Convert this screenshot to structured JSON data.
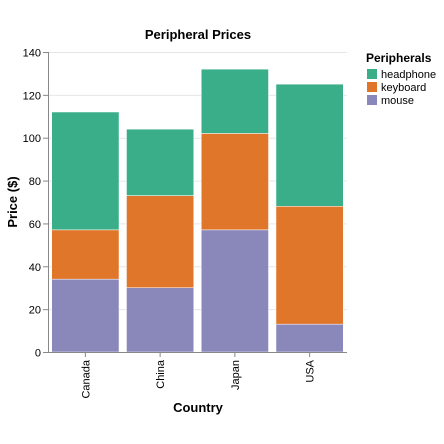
{
  "chart_data": {
    "type": "bar",
    "stacked": true,
    "title": "Peripheral Prices",
    "xlabel": "Country",
    "ylabel": "Price ($)",
    "categories": [
      "Canada",
      "China",
      "Japan",
      "USA"
    ],
    "ylim": [
      0,
      140
    ],
    "yticks": [
      0,
      20,
      40,
      60,
      80,
      100,
      120,
      140
    ],
    "grid": true,
    "legend": {
      "title": "Peripherals",
      "position": "top-right",
      "entries": [
        "headphone",
        "keyboard",
        "mouse"
      ]
    },
    "series": [
      {
        "name": "mouse",
        "color": "#8a87bb",
        "values": [
          34,
          30,
          57,
          13
        ]
      },
      {
        "name": "keyboard",
        "color": "#e0762a",
        "values": [
          23,
          43,
          45,
          55
        ]
      },
      {
        "name": "headphone",
        "color": "#3aad89",
        "values": [
          55,
          31,
          30,
          57
        ]
      }
    ]
  }
}
